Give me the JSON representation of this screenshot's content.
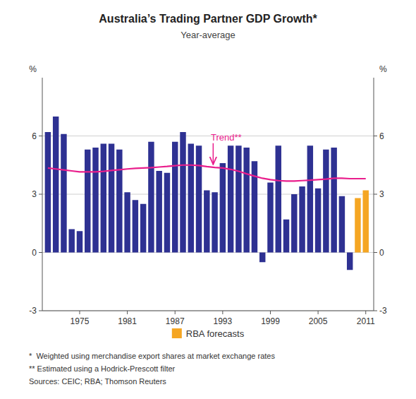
{
  "chart_data": {
    "type": "bar",
    "title": "Australia’s Trading Partner GDP Growth*",
    "subtitle": "Year-average",
    "ylabel": "%",
    "y2label": "%",
    "x": [
      1971,
      1972,
      1973,
      1974,
      1975,
      1976,
      1977,
      1978,
      1979,
      1980,
      1981,
      1982,
      1983,
      1984,
      1985,
      1986,
      1987,
      1988,
      1989,
      1990,
      1991,
      1992,
      1993,
      1994,
      1995,
      1996,
      1997,
      1998,
      1999,
      2000,
      2001,
      2002,
      2003,
      2004,
      2005,
      2006,
      2007,
      2008,
      2009,
      2010,
      2011
    ],
    "xlim": [
      1970.3,
      2012.0
    ],
    "xticks": [
      1975,
      1981,
      1987,
      1993,
      1999,
      2005,
      2011
    ],
    "ylim": [
      -3,
      9
    ],
    "yticks": [
      -3,
      0,
      3,
      6
    ],
    "y2lim": [
      -3,
      9
    ],
    "y2ticks": [
      -3,
      0,
      3,
      6
    ],
    "grid": true,
    "legend": "bottom",
    "series": [
      {
        "type": "bar",
        "color": "#2e3192",
        "values": [
          6.2,
          7.0,
          6.1,
          1.2,
          1.1,
          5.3,
          5.4,
          5.6,
          5.6,
          5.3,
          3.1,
          2.7,
          2.5,
          5.7,
          4.2,
          4.1,
          5.7,
          6.2,
          5.6,
          5.5,
          3.2,
          3.1,
          4.6,
          5.5,
          5.5,
          5.4,
          4.7,
          -0.5,
          3.6,
          5.5,
          1.7,
          3.0,
          3.4,
          5.5,
          3.3,
          5.3,
          5.4,
          2.9,
          -0.9,
          null,
          null
        ]
      },
      {
        "type": "bar",
        "name": "RBA forecasts",
        "color": "#f5a623",
        "values": [
          null,
          null,
          null,
          null,
          null,
          null,
          null,
          null,
          null,
          null,
          null,
          null,
          null,
          null,
          null,
          null,
          null,
          null,
          null,
          null,
          null,
          null,
          null,
          null,
          null,
          null,
          null,
          null,
          null,
          null,
          null,
          null,
          null,
          null,
          null,
          null,
          null,
          null,
          null,
          2.8,
          3.2
        ]
      },
      {
        "type": "line",
        "color": "#e91e8c",
        "values": [
          4.35,
          4.3,
          4.25,
          4.2,
          4.15,
          4.15,
          4.15,
          4.18,
          4.22,
          4.26,
          4.3,
          4.33,
          4.35,
          4.37,
          4.4,
          4.43,
          4.47,
          4.5,
          4.5,
          4.48,
          4.42,
          4.38,
          4.35,
          4.28,
          4.18,
          4.05,
          3.93,
          3.82,
          3.75,
          3.7,
          3.68,
          3.68,
          3.7,
          3.72,
          3.75,
          3.78,
          3.82,
          3.82,
          3.8,
          3.8,
          3.8
        ]
      }
    ],
    "annotations": [
      {
        "text": "Trend**",
        "x": 1991.5,
        "y": 5.7,
        "arrow_x": 1991.8,
        "arrow_y": 4.5,
        "color": "#e91e8c"
      }
    ],
    "footnotes": [
      "*  Weighted using merchandise export shares at market exchange rates",
      "** Estimated using a Hodrick-Prescott filter",
      "Sources: CEIC; RBA; Thomson Reuters"
    ]
  }
}
